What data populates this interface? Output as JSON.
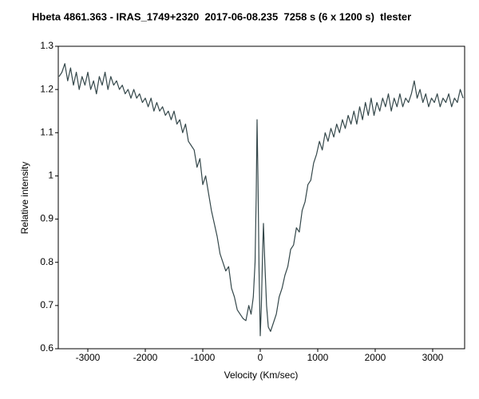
{
  "chart_data": {
    "type": "line",
    "title": "Hbeta 4861.363 - IRAS_1749+2320  2017-06-08.235  7258 s (6 x 1200 s)  tlester",
    "x_label": "Velocity (Km/sec)",
    "y_label": "Relative intensity",
    "color": "#34474a",
    "xlim": [
      -3514,
      3556
    ],
    "ylim": [
      0.6,
      1.3
    ],
    "xticks": [
      -3000,
      -2000,
      -1000,
      0,
      1000,
      2000,
      3000
    ],
    "yticks": [
      0.6,
      0.7,
      0.8,
      0.9,
      1,
      1.1,
      1.2,
      1.3
    ],
    "x": [
      -3500,
      -3450,
      -3400,
      -3350,
      -3300,
      -3250,
      -3200,
      -3150,
      -3100,
      -3050,
      -3000,
      -2950,
      -2900,
      -2850,
      -2800,
      -2750,
      -2700,
      -2650,
      -2600,
      -2550,
      -2500,
      -2450,
      -2400,
      -2350,
      -2300,
      -2250,
      -2200,
      -2150,
      -2100,
      -2050,
      -2000,
      -1950,
      -1900,
      -1850,
      -1800,
      -1750,
      -1700,
      -1650,
      -1600,
      -1550,
      -1500,
      -1450,
      -1400,
      -1350,
      -1300,
      -1250,
      -1200,
      -1150,
      -1100,
      -1050,
      -1000,
      -950,
      -900,
      -850,
      -800,
      -750,
      -700,
      -650,
      -600,
      -550,
      -500,
      -450,
      -400,
      -350,
      -300,
      -250,
      -200,
      -160,
      -120,
      -90,
      -70,
      -56,
      -40,
      -20,
      0,
      20,
      40,
      56,
      80,
      110,
      140,
      180,
      230,
      280,
      330,
      380,
      430,
      480,
      530,
      580,
      630,
      680,
      730,
      780,
      830,
      880,
      930,
      980,
      1030,
      1080,
      1130,
      1180,
      1230,
      1280,
      1330,
      1380,
      1430,
      1480,
      1530,
      1580,
      1630,
      1680,
      1730,
      1780,
      1830,
      1880,
      1930,
      1980,
      2030,
      2080,
      2130,
      2180,
      2230,
      2280,
      2330,
      2380,
      2430,
      2480,
      2530,
      2580,
      2630,
      2680,
      2730,
      2780,
      2830,
      2880,
      2930,
      2980,
      3030,
      3080,
      3130,
      3180,
      3230,
      3280,
      3330,
      3380,
      3430,
      3480,
      3530
    ],
    "values": [
      1.23,
      1.24,
      1.26,
      1.22,
      1.25,
      1.21,
      1.24,
      1.2,
      1.23,
      1.21,
      1.24,
      1.2,
      1.22,
      1.19,
      1.23,
      1.21,
      1.24,
      1.2,
      1.23,
      1.21,
      1.22,
      1.2,
      1.21,
      1.19,
      1.2,
      1.18,
      1.2,
      1.18,
      1.19,
      1.17,
      1.18,
      1.16,
      1.18,
      1.15,
      1.17,
      1.15,
      1.16,
      1.14,
      1.15,
      1.13,
      1.15,
      1.12,
      1.13,
      1.1,
      1.12,
      1.08,
      1.07,
      1.06,
      1.02,
      1.04,
      0.98,
      1.0,
      0.96,
      0.92,
      0.89,
      0.86,
      0.82,
      0.8,
      0.78,
      0.79,
      0.74,
      0.72,
      0.69,
      0.68,
      0.67,
      0.665,
      0.7,
      0.68,
      0.72,
      0.8,
      0.95,
      1.13,
      1.0,
      0.78,
      0.63,
      0.7,
      0.82,
      0.89,
      0.8,
      0.7,
      0.65,
      0.64,
      0.66,
      0.68,
      0.72,
      0.74,
      0.77,
      0.79,
      0.83,
      0.84,
      0.88,
      0.87,
      0.92,
      0.94,
      0.98,
      0.99,
      1.03,
      1.05,
      1.08,
      1.06,
      1.1,
      1.08,
      1.11,
      1.09,
      1.12,
      1.1,
      1.13,
      1.11,
      1.14,
      1.12,
      1.15,
      1.12,
      1.16,
      1.13,
      1.17,
      1.14,
      1.18,
      1.14,
      1.17,
      1.15,
      1.18,
      1.16,
      1.19,
      1.15,
      1.18,
      1.16,
      1.19,
      1.16,
      1.18,
      1.17,
      1.19,
      1.22,
      1.18,
      1.2,
      1.17,
      1.19,
      1.16,
      1.18,
      1.17,
      1.19,
      1.16,
      1.18,
      1.17,
      1.19,
      1.16,
      1.18,
      1.17,
      1.2,
      1.18
    ]
  }
}
